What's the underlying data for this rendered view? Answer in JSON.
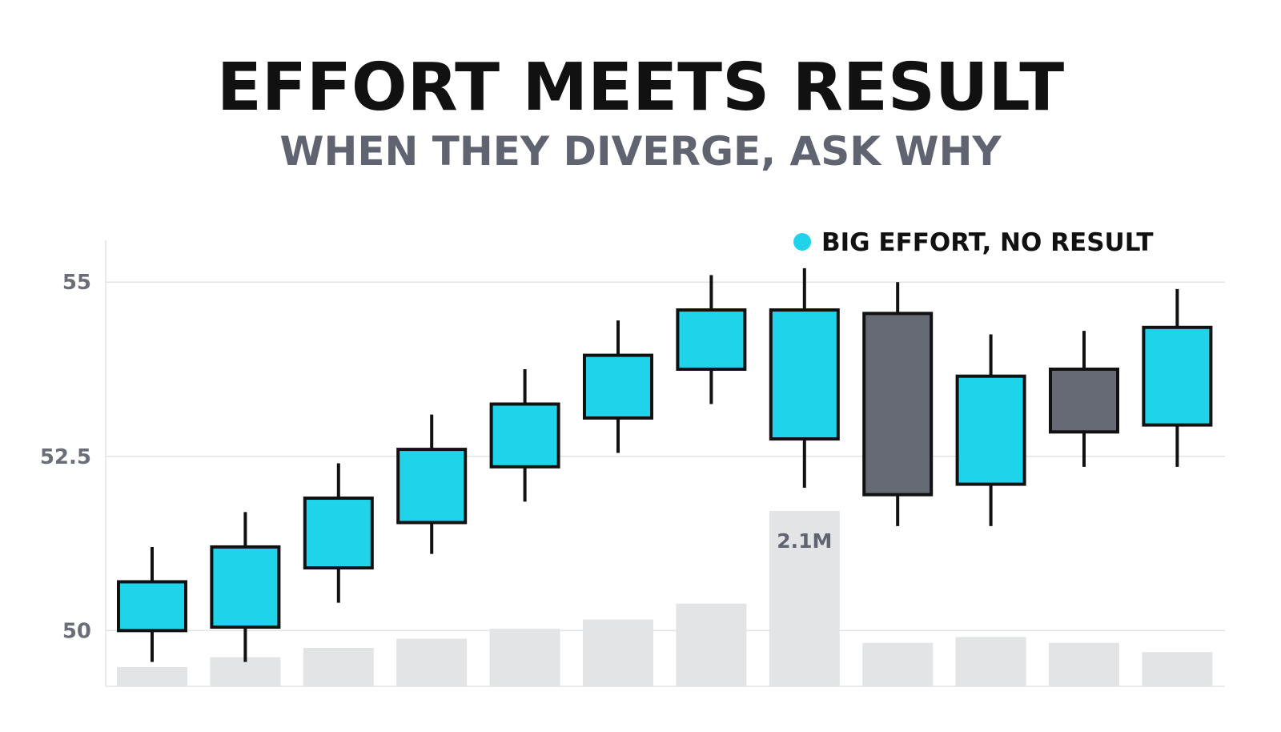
{
  "header": {
    "title": "EFFORT MEETS RESULT",
    "subtitle": "WHEN THEY DIVERGE, ASK WHY"
  },
  "colors": {
    "up": "#1fd3ea",
    "down": "#656a74",
    "outline": "#111111",
    "volume": "#e3e4e6",
    "grid": "#e2e3e5",
    "axis_text": "#6a6e78",
    "annotation_text": "#5f6470"
  },
  "chart_data": {
    "type": "candlestick",
    "ylim": [
      49.2,
      55.6
    ],
    "y_ticks": [
      50,
      52.5,
      55
    ],
    "y_tick_labels": [
      "50",
      "52.5",
      "55"
    ],
    "grid": true,
    "legend": {
      "position": "top-right",
      "entries": [
        {
          "label": "BIG EFFORT, NO RESULT",
          "color": "#1fd3ea"
        }
      ]
    },
    "candles": [
      {
        "open": 50.0,
        "close": 50.7,
        "high": 51.2,
        "low": 49.55,
        "direction": "up"
      },
      {
        "open": 50.05,
        "close": 51.2,
        "high": 51.7,
        "low": 49.55,
        "direction": "up"
      },
      {
        "open": 50.9,
        "close": 51.9,
        "high": 52.4,
        "low": 50.4,
        "direction": "up"
      },
      {
        "open": 51.55,
        "close": 52.6,
        "high": 53.1,
        "low": 51.1,
        "direction": "up"
      },
      {
        "open": 52.35,
        "close": 53.25,
        "high": 53.75,
        "low": 51.85,
        "direction": "up"
      },
      {
        "open": 53.05,
        "close": 53.95,
        "high": 54.45,
        "low": 52.55,
        "direction": "up"
      },
      {
        "open": 53.75,
        "close": 54.6,
        "high": 55.1,
        "low": 53.25,
        "direction": "up"
      },
      {
        "open": 52.75,
        "close": 54.6,
        "high": 55.2,
        "low": 52.05,
        "direction": "up"
      },
      {
        "open": 54.55,
        "close": 51.95,
        "high": 55.0,
        "low": 51.5,
        "direction": "down"
      },
      {
        "open": 52.1,
        "close": 53.65,
        "high": 54.25,
        "low": 51.5,
        "direction": "up"
      },
      {
        "open": 53.75,
        "close": 52.85,
        "high": 54.3,
        "low": 52.35,
        "direction": "down"
      },
      {
        "open": 52.95,
        "close": 54.35,
        "high": 54.9,
        "low": 52.35,
        "direction": "up"
      }
    ],
    "volume": {
      "values": [
        0.23,
        0.35,
        0.46,
        0.57,
        0.69,
        0.8,
        0.99,
        2.1,
        0.52,
        0.59,
        0.52,
        0.41
      ],
      "unit": "M",
      "annotations": [
        {
          "index": 7,
          "label": "2.1M"
        }
      ]
    }
  }
}
